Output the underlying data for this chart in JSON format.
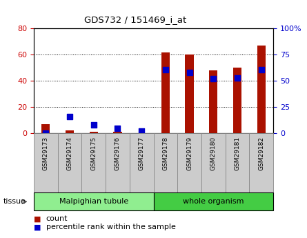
{
  "title": "GDS732 / 151469_i_at",
  "samples": [
    "GSM29173",
    "GSM29174",
    "GSM29175",
    "GSM29176",
    "GSM29177",
    "GSM29178",
    "GSM29179",
    "GSM29180",
    "GSM29181",
    "GSM29182"
  ],
  "counts": [
    7,
    2,
    1,
    1,
    0,
    62,
    60,
    48,
    50,
    67
  ],
  "percentile_ranks": [
    0,
    16,
    8,
    5,
    2,
    61,
    58,
    52,
    53,
    61
  ],
  "tissue_groups": [
    {
      "label": "Malpighian tubule",
      "start": 0,
      "end": 4,
      "color": "#90ee90"
    },
    {
      "label": "whole organism",
      "start": 5,
      "end": 9,
      "color": "#44cc44"
    }
  ],
  "bar_color": "#aa1100",
  "dot_color": "#0000cc",
  "left_ylim": [
    0,
    80
  ],
  "right_ylim": [
    0,
    100
  ],
  "left_yticks": [
    0,
    20,
    40,
    60,
    80
  ],
  "right_yticks": [
    0,
    25,
    50,
    75,
    100
  ],
  "right_yticklabels": [
    "0",
    "25",
    "50",
    "75",
    "100%"
  ],
  "left_ycolor": "#cc0000",
  "right_ycolor": "#0000cc",
  "dot_size": 30,
  "dot_marker": "s",
  "bg_color": "#ffffff",
  "plot_bg": "#ffffff",
  "sample_box_color": "#cccccc",
  "sample_box_edge": "#888888",
  "tissue_label": "tissue",
  "legend_count_label": "count",
  "legend_pct_label": "percentile rank within the sample"
}
